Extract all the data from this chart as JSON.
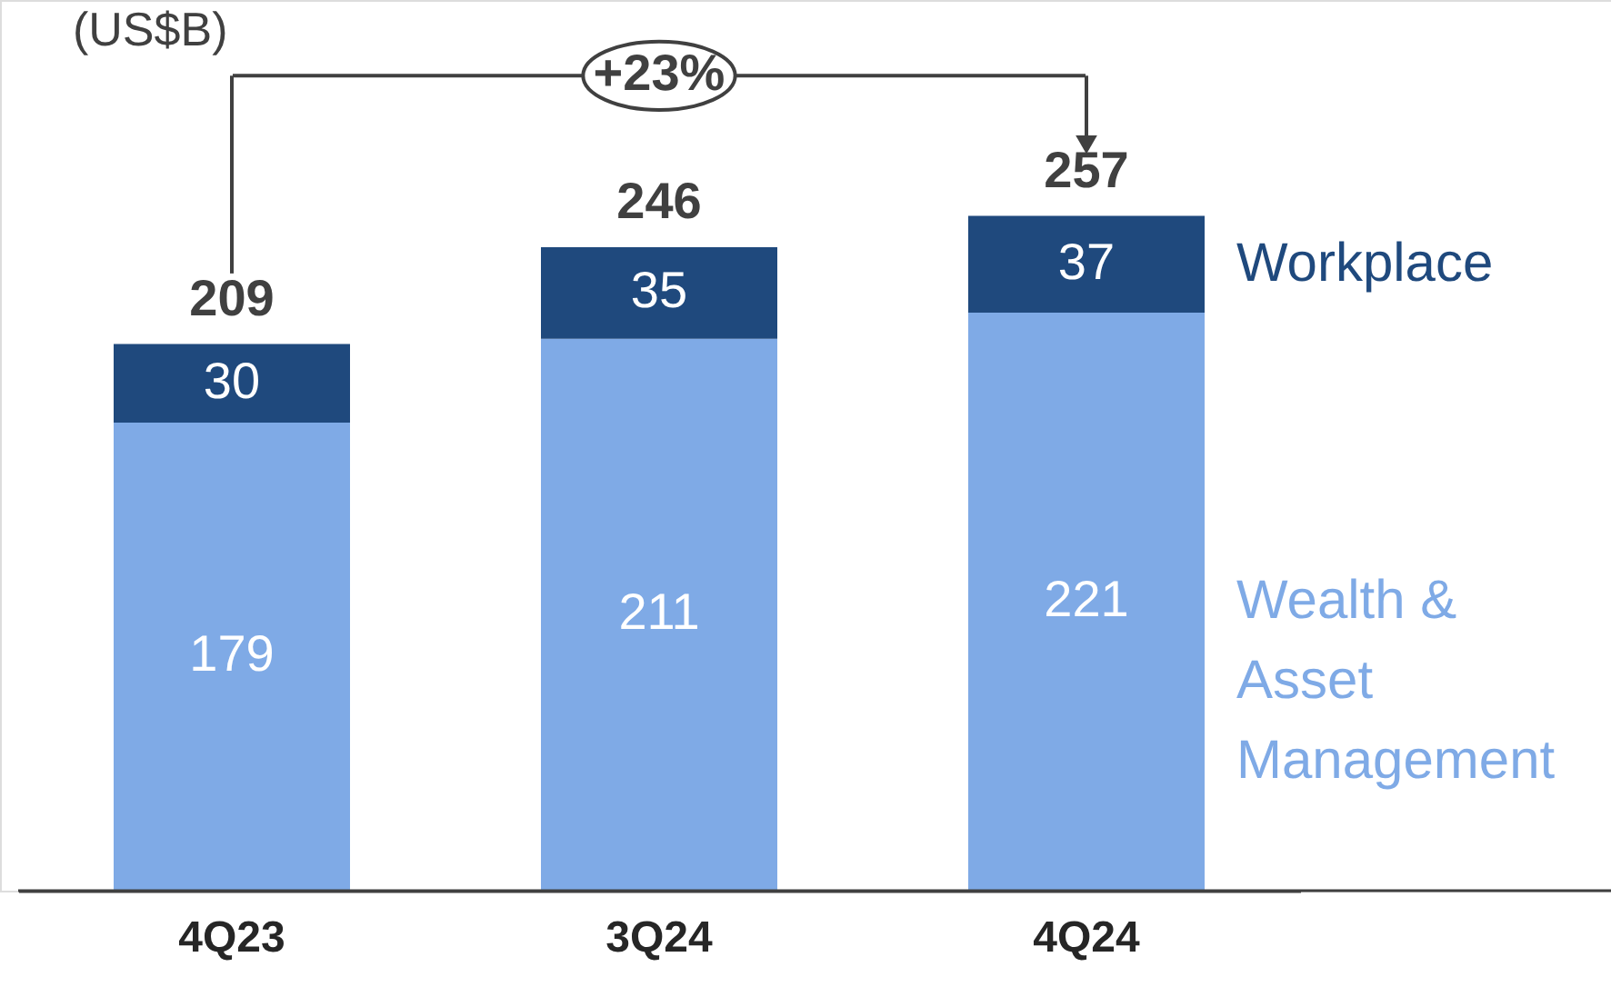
{
  "chart_data": {
    "type": "bar",
    "stacked": true,
    "data_labels": true,
    "ylabel": "(US$B)",
    "categories": [
      "4Q23",
      "3Q24",
      "4Q24"
    ],
    "series": [
      {
        "name": "Wealth & Asset Management",
        "color": "#7faae6",
        "values": [
          179,
          211,
          221
        ]
      },
      {
        "name": "Workplace",
        "color": "#1f497d",
        "values": [
          30,
          35,
          37
        ]
      }
    ],
    "totals": [
      "209",
      "246",
      "257"
    ],
    "annotations": [
      "+23%"
    ]
  }
}
